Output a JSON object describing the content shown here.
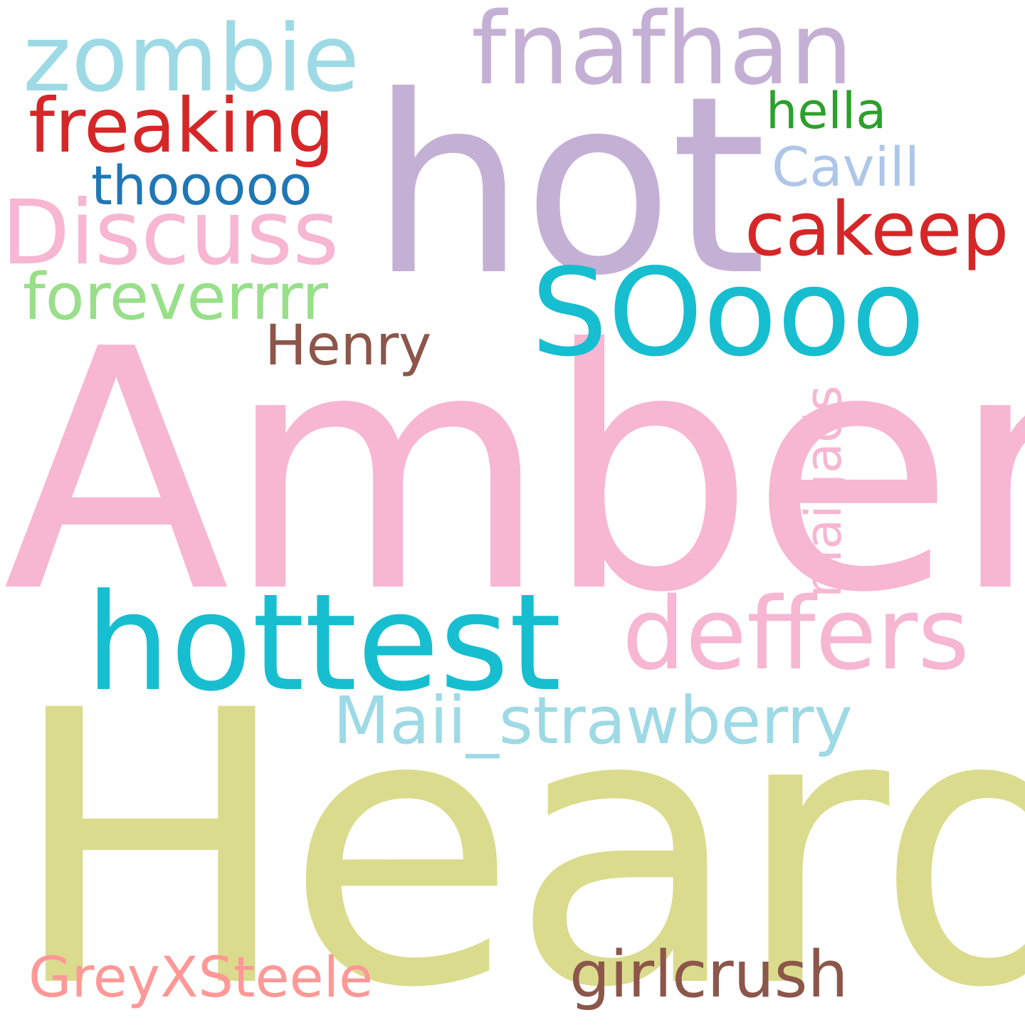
{
  "words": [
    {
      "id": "w-amber",
      "text": "Amber",
      "color": "#f7b6d2"
    },
    {
      "id": "w-heard",
      "text": "Heard",
      "color": "#dbdb8d"
    },
    {
      "id": "w-hot",
      "text": "hot",
      "color": "#c5b0d5"
    },
    {
      "id": "w-hottest",
      "text": "hottest",
      "color": "#17becf"
    },
    {
      "id": "w-soooo",
      "text": "SOooo",
      "color": "#17becf"
    },
    {
      "id": "w-deffers",
      "text": "deffers",
      "color": "#f7b6d2"
    },
    {
      "id": "w-zombie",
      "text": "zombie",
      "color": "#9edae5"
    },
    {
      "id": "w-fnafhan",
      "text": "fnafhan",
      "color": "#c5b0d5"
    },
    {
      "id": "w-discuss",
      "text": "Discuss",
      "color": "#f7b6d2"
    },
    {
      "id": "w-freaking",
      "text": "freaking",
      "color": "#d62728"
    },
    {
      "id": "w-cakeep",
      "text": "cakeep",
      "color": "#d62728"
    },
    {
      "id": "w-maii",
      "text": "Maii_strawberry",
      "color": "#9edae5"
    },
    {
      "id": "w-forever",
      "text": "foreverrrr",
      "color": "#98df8a"
    },
    {
      "id": "w-girl",
      "text": "girlcrush",
      "color": "#8c564b"
    },
    {
      "id": "w-grey",
      "text": "GreyXSteele",
      "color": "#ff9896"
    },
    {
      "id": "w-thoo",
      "text": "thooooo",
      "color": "#1f77b4"
    },
    {
      "id": "w-henry",
      "text": "Henry",
      "color": "#8c564b"
    },
    {
      "id": "w-cavill",
      "text": "Cavill",
      "color": "#aec7e8"
    },
    {
      "id": "w-hella",
      "text": "hella",
      "color": "#2ca02c"
    },
    {
      "id": "w-maigads",
      "text": "maigads",
      "color": "#f7b6d2"
    }
  ]
}
